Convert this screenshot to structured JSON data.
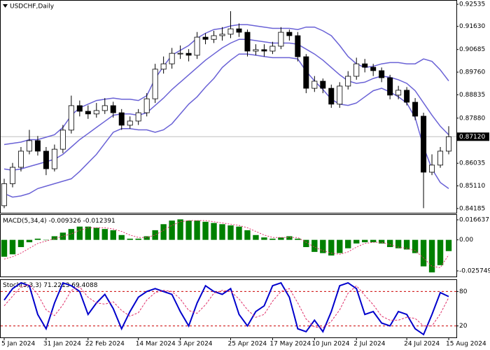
{
  "chart_data": [
    {
      "type": "candlestick",
      "title": "USDCHF,Daily",
      "categories": [
        "5 Jan 2024",
        null,
        null,
        null,
        null,
        "31 Jan 2024",
        null,
        null,
        null,
        null,
        "22 Feb 2024",
        null,
        null,
        null,
        null,
        null,
        "14 Mar 2024",
        null,
        null,
        null,
        null,
        "3 Apr 2024",
        null,
        null,
        null,
        null,
        null,
        "25 Apr 2024",
        null,
        null,
        null,
        null,
        "17 May 2024",
        null,
        null,
        null,
        null,
        "10 Jun 2024",
        null,
        null,
        null,
        null,
        "2 Jul 2024",
        null,
        null,
        null,
        null,
        null,
        "24 Jul 2024",
        null,
        null,
        null,
        null,
        "15 Aug 2024"
      ],
      "open": [
        0.843,
        0.852,
        0.8587,
        0.8653,
        0.8696,
        0.8653,
        0.8581,
        0.8661,
        0.8739,
        0.8839,
        0.8816,
        0.8805,
        0.8819,
        0.8839,
        0.881,
        0.8759,
        0.8776,
        0.881,
        0.8867,
        0.8988,
        0.901,
        0.9053,
        0.9053,
        0.9045,
        0.9119,
        0.911,
        0.9125,
        0.9131,
        0.9153,
        0.9139,
        0.9062,
        0.9068,
        0.9062,
        0.9082,
        0.9139,
        0.9125,
        0.9039,
        0.891,
        0.8939,
        0.891,
        0.8845,
        0.8919,
        0.8959,
        0.901,
        0.8996,
        0.8982,
        0.8953,
        0.8882,
        0.8902,
        0.8853,
        0.8796,
        0.8567,
        0.8596,
        0.8653
      ],
      "high": [
        0.854,
        0.8605,
        0.867,
        0.874,
        0.8715,
        0.867,
        0.868,
        0.876,
        0.888,
        0.886,
        0.884,
        0.885,
        0.887,
        0.8855,
        0.8825,
        0.8795,
        0.8825,
        0.889,
        0.901,
        0.904,
        0.9075,
        0.9085,
        0.907,
        0.914,
        0.9135,
        0.9145,
        0.916,
        0.9225,
        0.9175,
        0.915,
        0.909,
        0.909,
        0.91,
        0.916,
        0.915,
        0.914,
        0.905,
        0.896,
        0.895,
        0.8925,
        0.8935,
        0.898,
        0.9035,
        0.903,
        0.901,
        0.8995,
        0.8965,
        0.892,
        0.8915,
        0.887,
        0.881,
        0.864,
        0.867,
        0.8755
      ],
      "low": [
        0.842,
        0.8505,
        0.857,
        0.864,
        0.8635,
        0.8555,
        0.857,
        0.8645,
        0.8725,
        0.8795,
        0.8785,
        0.879,
        0.8805,
        0.879,
        0.874,
        0.8745,
        0.876,
        0.8795,
        0.885,
        0.897,
        0.899,
        0.903,
        0.902,
        0.903,
        0.909,
        0.9095,
        0.9105,
        0.9115,
        0.912,
        0.904,
        0.9045,
        0.904,
        0.905,
        0.907,
        0.9105,
        0.902,
        0.889,
        0.8895,
        0.889,
        0.883,
        0.883,
        0.8905,
        0.8945,
        0.8975,
        0.896,
        0.8935,
        0.8865,
        0.8865,
        0.884,
        0.878,
        0.842,
        0.8555,
        0.8585,
        0.864
      ],
      "close": [
        0.852,
        0.8587,
        0.8653,
        0.8696,
        0.8653,
        0.8581,
        0.8661,
        0.8739,
        0.8839,
        0.8816,
        0.8805,
        0.8819,
        0.8839,
        0.881,
        0.8759,
        0.8776,
        0.881,
        0.8867,
        0.8988,
        0.901,
        0.9053,
        0.9053,
        0.9045,
        0.9119,
        0.911,
        0.9125,
        0.9131,
        0.9153,
        0.9139,
        0.9062,
        0.9068,
        0.9062,
        0.9082,
        0.9139,
        0.9125,
        0.9039,
        0.891,
        0.8939,
        0.891,
        0.8845,
        0.8919,
        0.8959,
        0.901,
        0.8996,
        0.8982,
        0.8953,
        0.8882,
        0.8902,
        0.8853,
        0.8796,
        0.8567,
        0.8596,
        0.8653,
        0.8712
      ],
      "overlays": [
        {
          "color": "#6a62d6",
          "values": [
            0.868,
            0.8685,
            0.869,
            0.87,
            0.87,
            0.871,
            0.872,
            0.875,
            0.88,
            0.883,
            0.8845,
            0.886,
            0.8865,
            0.887,
            0.8865,
            0.8865,
            0.886,
            0.888,
            0.895,
            0.9,
            0.9045,
            0.9065,
            0.9085,
            0.9115,
            0.9135,
            0.915,
            0.9155,
            0.9165,
            0.917,
            0.917,
            0.9165,
            0.916,
            0.9155,
            0.9155,
            0.9155,
            0.915,
            0.916,
            0.916,
            0.9145,
            0.9125,
            0.9085,
            0.904,
            0.901,
            0.8995,
            0.9,
            0.901,
            0.9015,
            0.9015,
            0.901,
            0.901,
            0.903,
            0.902,
            0.8985,
            0.894
          ]
        },
        {
          "color": "#6a62d6",
          "values": [
            0.858,
            0.8575,
            0.858,
            0.859,
            0.86,
            0.861,
            0.862,
            0.864,
            0.867,
            0.87,
            0.8725,
            0.875,
            0.8775,
            0.88,
            0.8805,
            0.8805,
            0.88,
            0.881,
            0.884,
            0.887,
            0.8905,
            0.8935,
            0.8965,
            0.8995,
            0.9025,
            0.905,
            0.9075,
            0.9095,
            0.911,
            0.911,
            0.9105,
            0.91,
            0.9095,
            0.9095,
            0.9095,
            0.909,
            0.907,
            0.905,
            0.9025,
            0.8995,
            0.8965,
            0.894,
            0.893,
            0.8935,
            0.895,
            0.896,
            0.8955,
            0.8945,
            0.893,
            0.89,
            0.885,
            0.88,
            0.8755,
            0.872
          ]
        },
        {
          "color": "#6a62d6",
          "values": [
            0.848,
            0.8465,
            0.847,
            0.848,
            0.85,
            0.851,
            0.852,
            0.853,
            0.854,
            0.857,
            0.8605,
            0.864,
            0.8685,
            0.873,
            0.8745,
            0.8745,
            0.874,
            0.874,
            0.873,
            0.874,
            0.8765,
            0.8805,
            0.8845,
            0.8875,
            0.8915,
            0.895,
            0.8995,
            0.9025,
            0.905,
            0.905,
            0.9045,
            0.904,
            0.9035,
            0.9035,
            0.9035,
            0.903,
            0.898,
            0.894,
            0.8905,
            0.8865,
            0.8845,
            0.884,
            0.885,
            0.8875,
            0.89,
            0.891,
            0.8895,
            0.8875,
            0.885,
            0.879,
            0.867,
            0.858,
            0.8525,
            0.85
          ]
        }
      ],
      "ylim": [
        0.8401,
        0.9268
      ],
      "yticks": [
        0.92535,
        {
          "value": 0.9163,
          "label": "0.91630"
        },
        0.90685,
        {
          "value": 0.8976,
          "label": "0.89760"
        },
        0.88835,
        {
          "value": 0.8788,
          "label": "0.87880"
        },
        0.86035,
        {
          "value": 0.8511,
          "label": "0.85110"
        },
        0.84185
      ],
      "current_price": {
        "value": 0.8712,
        "label": "0.87120"
      }
    },
    {
      "type": "macd",
      "title": "MACD(5,34,4)",
      "series": [
        {
          "kind": "histogram",
          "color": "#008000",
          "values": [
            -0.014,
            -0.012,
            -0.006,
            -0.002,
            0.001,
            0.0,
            0.003,
            0.006,
            0.009,
            0.011,
            0.011,
            0.01,
            0.009,
            0.008,
            0.004,
            0.001,
            0.001,
            0.003,
            0.008,
            0.013,
            0.016,
            0.017,
            0.016,
            0.016,
            0.015,
            0.014,
            0.013,
            0.012,
            0.011,
            0.008,
            0.004,
            0.002,
            0.001,
            0.002,
            0.003,
            0.001,
            -0.006,
            -0.01,
            -0.011,
            -0.013,
            -0.011,
            -0.007,
            -0.003,
            -0.002,
            -0.002,
            -0.003,
            -0.006,
            -0.007,
            -0.008,
            -0.011,
            -0.022,
            -0.027,
            -0.021,
            -0.009326
          ]
        },
        {
          "kind": "line",
          "dash": "2,2",
          "color": "#e0306a",
          "values": [
            -0.016,
            -0.014,
            -0.011,
            -0.007,
            -0.003,
            -0.001,
            0.001,
            0.003,
            0.005,
            0.008,
            0.01,
            0.01,
            0.01,
            0.009,
            0.007,
            0.004,
            0.002,
            0.002,
            0.004,
            0.008,
            0.012,
            0.015,
            0.016,
            0.016,
            0.016,
            0.015,
            0.014,
            0.013,
            0.012,
            0.01,
            0.007,
            0.004,
            0.002,
            0.002,
            0.002,
            0.002,
            -0.002,
            -0.006,
            -0.009,
            -0.011,
            -0.012,
            -0.01,
            -0.006,
            -0.003,
            -0.002,
            -0.002,
            -0.004,
            -0.006,
            -0.007,
            -0.009,
            -0.015,
            -0.022,
            -0.023,
            -0.012391
          ]
        }
      ],
      "ylim": [
        -0.0304,
        0.0207
      ],
      "yticks": [
        0.016637,
        {
          "value": 0,
          "label": "0.00"
        },
        -0.025749
      ]
    },
    {
      "type": "stochastic",
      "title": "Stoch(5,3,3)",
      "series": [
        {
          "kind": "line",
          "color": "#0000cc",
          "width": 2,
          "values": [
            65,
            85,
            95,
            90,
            40,
            15,
            60,
            95,
            90,
            80,
            40,
            60,
            75,
            50,
            15,
            45,
            70,
            80,
            85,
            80,
            75,
            45,
            20,
            60,
            90,
            80,
            75,
            85,
            40,
            20,
            45,
            55,
            90,
            95,
            70,
            15,
            10,
            30,
            10,
            45,
            90,
            95,
            85,
            40,
            45,
            25,
            20,
            45,
            40,
            15,
            5,
            40,
            78,
            71.2213
          ]
        },
        {
          "kind": "line",
          "dash": "3,2",
          "color": "#e0306a",
          "width": 1,
          "values": [
            55,
            72,
            88,
            92,
            75,
            48,
            38,
            57,
            82,
            88,
            70,
            60,
            58,
            62,
            47,
            37,
            43,
            65,
            78,
            82,
            80,
            67,
            47,
            42,
            57,
            77,
            82,
            80,
            67,
            48,
            35,
            40,
            63,
            80,
            85,
            60,
            32,
            18,
            17,
            28,
            48,
            77,
            90,
            73,
            57,
            37,
            30,
            30,
            35,
            33,
            20,
            20,
            41,
            69.4088
          ]
        }
      ],
      "ylim": [
        0,
        100
      ],
      "yticks": [
        80,
        20
      ],
      "level_color": "#cc0000"
    }
  ]
}
